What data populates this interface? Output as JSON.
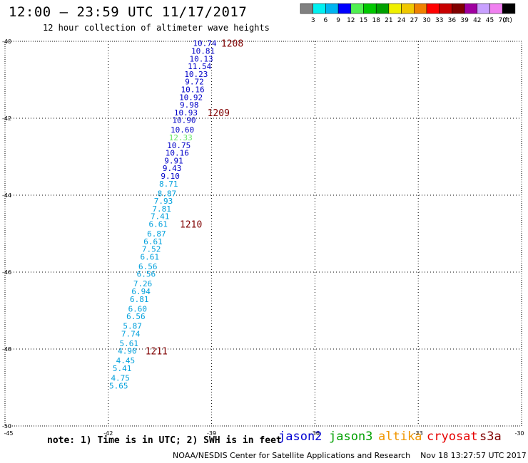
{
  "header": {
    "title": "12:00 – 23:59 UTC 11/17/2017",
    "subtitle": "12 hour collection of altimeter wave heights"
  },
  "colorbar": {
    "colors": [
      "#808080",
      "#00f0f0",
      "#00b4f0",
      "#0000ff",
      "#50f050",
      "#00c800",
      "#00a000",
      "#f0f000",
      "#f0c800",
      "#f08200",
      "#ff0000",
      "#c80000",
      "#800000",
      "#a000a0",
      "#c8a0ff",
      "#f080f0",
      "#000000"
    ],
    "labels": [
      "3",
      "6",
      "9",
      "12",
      "15",
      "18",
      "21",
      "24",
      "27",
      "30",
      "33",
      "36",
      "39",
      "42",
      "45",
      "70"
    ],
    "unit": "(ft)"
  },
  "chart_data": {
    "type": "scatter",
    "title": "12:00 – 23:59 UTC 11/17/2017",
    "subtitle": "12 hour collection of altimeter wave heights",
    "xlabel": "",
    "ylabel": "",
    "xlim": [
      -45,
      -30
    ],
    "ylim": [
      -50,
      -40
    ],
    "x_ticks": [
      "-45",
      "-42",
      "-39",
      "-36",
      "-33",
      "-30"
    ],
    "y_ticks": [
      "-40",
      "-42",
      "-44",
      "-46",
      "-48",
      "-50"
    ],
    "grid": true,
    "series": [
      {
        "name": "swh",
        "points": [
          {
            "lon": -39.2,
            "lat": -40.05,
            "label": "10.74",
            "color": "#0000c8"
          },
          {
            "lon": -39.25,
            "lat": -40.25,
            "label": "10.81",
            "color": "#0000c8"
          },
          {
            "lon": -39.3,
            "lat": -40.45,
            "label": "10.13",
            "color": "#0000c8"
          },
          {
            "lon": -39.35,
            "lat": -40.65,
            "label": "11.54",
            "color": "#0000c8"
          },
          {
            "lon": -39.45,
            "lat": -40.85,
            "label": "10.23",
            "color": "#0000c8"
          },
          {
            "lon": -39.5,
            "lat": -41.05,
            "label": "9.72",
            "color": "#0000c8"
          },
          {
            "lon": -39.55,
            "lat": -41.25,
            "label": "10.16",
            "color": "#0000c8"
          },
          {
            "lon": -39.6,
            "lat": -41.45,
            "label": "10.92",
            "color": "#0000c8"
          },
          {
            "lon": -39.65,
            "lat": -41.65,
            "label": "9.98",
            "color": "#0000c8"
          },
          {
            "lon": -39.75,
            "lat": -41.85,
            "label": "10.93",
            "color": "#0000c8"
          },
          {
            "lon": -39.8,
            "lat": -42.05,
            "label": "10.90",
            "color": "#0000c8"
          },
          {
            "lon": -39.85,
            "lat": -42.3,
            "label": "10.60",
            "color": "#0000c8"
          },
          {
            "lon": -39.9,
            "lat": -42.5,
            "label": "12.33",
            "color": "#64e664"
          },
          {
            "lon": -39.95,
            "lat": -42.7,
            "label": "10.75",
            "color": "#0000c8"
          },
          {
            "lon": -40.0,
            "lat": -42.9,
            "label": "10.16",
            "color": "#0000c8"
          },
          {
            "lon": -40.1,
            "lat": -43.1,
            "label": "9.91",
            "color": "#0000c8"
          },
          {
            "lon": -40.15,
            "lat": -43.3,
            "label": "9.43",
            "color": "#0000c8"
          },
          {
            "lon": -40.2,
            "lat": -43.5,
            "label": "9.10",
            "color": "#0000c8"
          },
          {
            "lon": -40.25,
            "lat": -43.7,
            "label": "8.71",
            "color": "#00a0dc"
          },
          {
            "lon": -40.3,
            "lat": -43.95,
            "label": "8.87",
            "color": "#00a0dc"
          },
          {
            "lon": -40.4,
            "lat": -44.15,
            "label": "7.93",
            "color": "#00a0dc"
          },
          {
            "lon": -40.45,
            "lat": -44.35,
            "label": "7.81",
            "color": "#00a0dc"
          },
          {
            "lon": -40.5,
            "lat": -44.55,
            "label": "7.41",
            "color": "#00a0dc"
          },
          {
            "lon": -40.55,
            "lat": -44.75,
            "label": "6.61",
            "color": "#00a0dc"
          },
          {
            "lon": -40.6,
            "lat": -45.0,
            "label": "6.87",
            "color": "#00a0dc"
          },
          {
            "lon": -40.7,
            "lat": -45.2,
            "label": "6.61",
            "color": "#00a0dc"
          },
          {
            "lon": -40.75,
            "lat": -45.4,
            "label": "7.52",
            "color": "#00a0dc"
          },
          {
            "lon": -40.8,
            "lat": -45.6,
            "label": "6.61",
            "color": "#00a0dc"
          },
          {
            "lon": -40.85,
            "lat": -45.85,
            "label": "6.56",
            "color": "#00a0dc"
          },
          {
            "lon": -40.9,
            "lat": -46.05,
            "label": "6.56",
            "color": "#00a0dc"
          },
          {
            "lon": -41.0,
            "lat": -46.3,
            "label": "7.26",
            "color": "#00a0dc"
          },
          {
            "lon": -41.05,
            "lat": -46.5,
            "label": "6.94",
            "color": "#00a0dc"
          },
          {
            "lon": -41.1,
            "lat": -46.7,
            "label": "6.81",
            "color": "#00a0dc"
          },
          {
            "lon": -41.15,
            "lat": -46.95,
            "label": "6.60",
            "color": "#00a0dc"
          },
          {
            "lon": -41.2,
            "lat": -47.15,
            "label": "6.56",
            "color": "#00a0dc"
          },
          {
            "lon": -41.3,
            "lat": -47.4,
            "label": "5.87",
            "color": "#00a0dc"
          },
          {
            "lon": -41.35,
            "lat": -47.6,
            "label": "7.74",
            "color": "#00a0dc"
          },
          {
            "lon": -41.4,
            "lat": -47.85,
            "label": "5.61",
            "color": "#00a0dc"
          },
          {
            "lon": -41.45,
            "lat": -48.05,
            "label": "4.90",
            "color": "#00a0dc"
          },
          {
            "lon": -41.5,
            "lat": -48.3,
            "label": "4.45",
            "color": "#00a0dc"
          },
          {
            "lon": -41.6,
            "lat": -48.5,
            "label": "5.41",
            "color": "#00a0dc"
          },
          {
            "lon": -41.65,
            "lat": -48.75,
            "label": "4.75",
            "color": "#00a0dc"
          },
          {
            "lon": -41.7,
            "lat": -48.95,
            "label": "5.65",
            "color": "#00a0dc"
          }
        ]
      }
    ],
    "time_labels": [
      {
        "label": "1208",
        "lon": -38.4,
        "lat": -40.05
      },
      {
        "label": "1209",
        "lon": -38.8,
        "lat": -41.85
      },
      {
        "label": "1210",
        "lon": -39.6,
        "lat": -44.75
      },
      {
        "label": "1211",
        "lon": -40.6,
        "lat": -48.05
      }
    ],
    "time_label_color": "#800000",
    "axis_color": "#000000",
    "grid_color": "#000000"
  },
  "footer": {
    "note": "note: 1) Time is in UTC; 2) SWH is in feet",
    "legend": [
      {
        "name": "jason2",
        "color": "#0000d2"
      },
      {
        "name": "jason3",
        "color": "#00a000"
      },
      {
        "name": "altika",
        "color": "#f09600"
      },
      {
        "name": "cryosat",
        "color": "#e60000"
      },
      {
        "name": "s3a",
        "color": "#800000"
      }
    ],
    "credit": "NOAA/NESDIS Center for Satellite Applications and Research    Nov 18 13:27:57 UTC 2017"
  }
}
